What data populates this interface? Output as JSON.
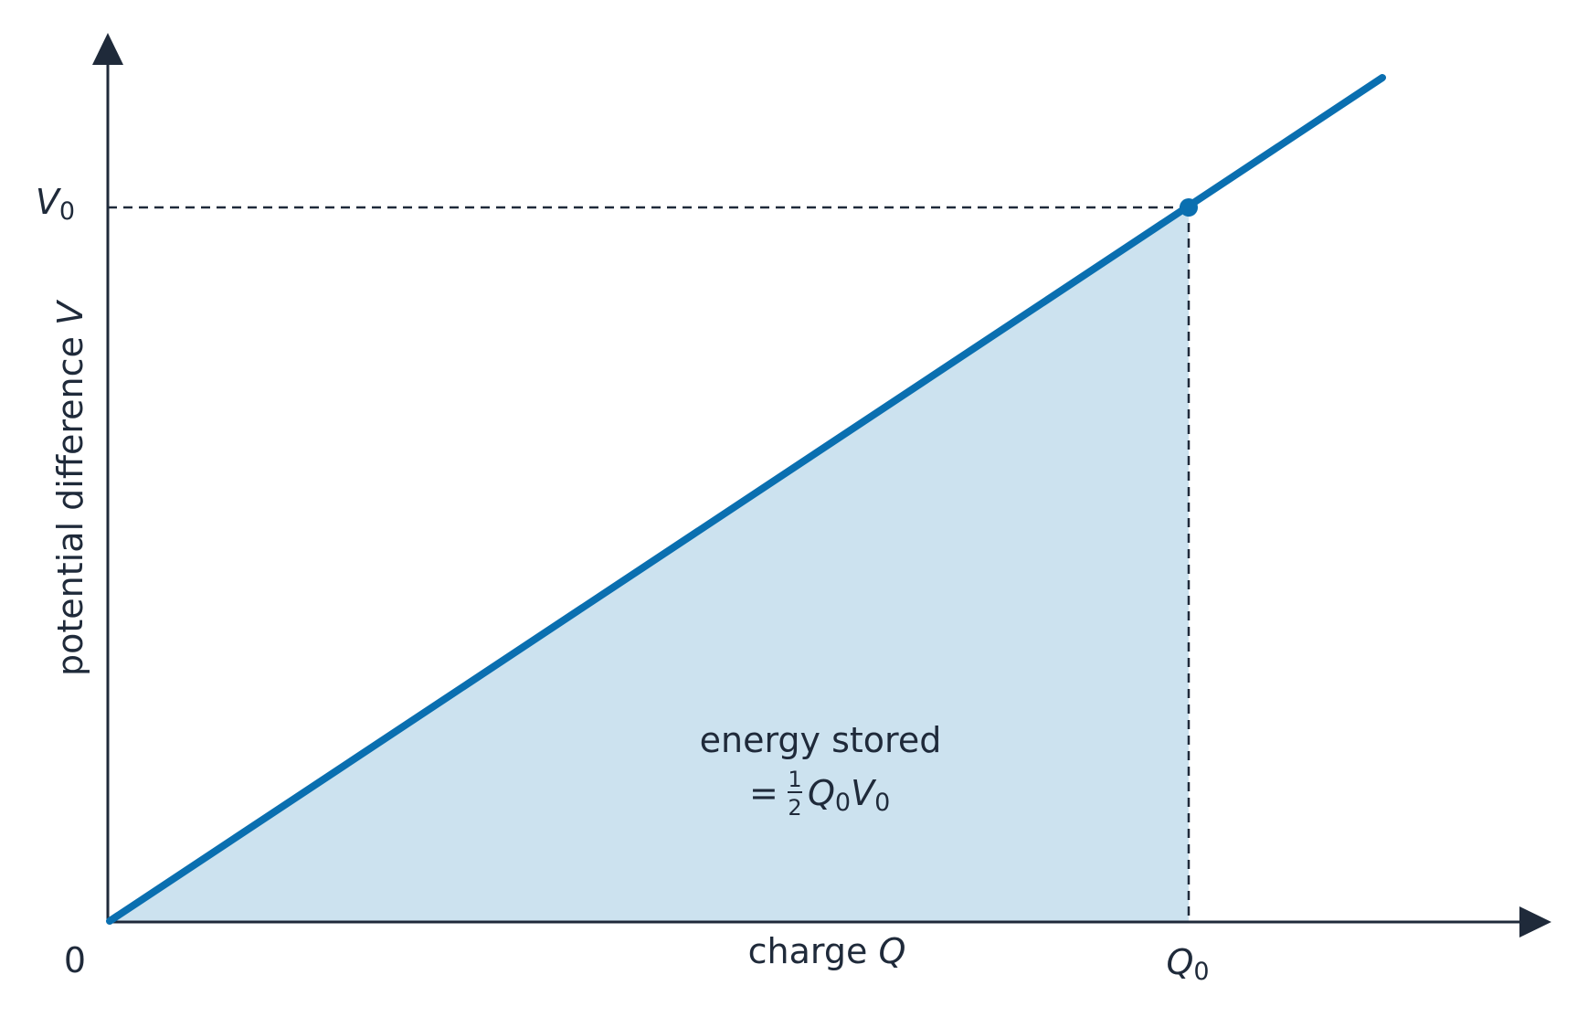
{
  "y_axis": {
    "label": {
      "text": "potential difference ",
      "symbol": "V"
    },
    "tick": {
      "symbol": "V",
      "subscript": "0"
    }
  },
  "x_axis": {
    "label": {
      "text": "charge ",
      "symbol": "Q"
    },
    "tick": {
      "symbol": "Q",
      "subscript": "0"
    }
  },
  "origin": "0",
  "area_label": {
    "line1": "energy stored",
    "equals": "=",
    "numerator": "1",
    "denominator": "2",
    "q": "Q",
    "q_sub": "0",
    "v": "V",
    "v_sub": "0"
  }
}
